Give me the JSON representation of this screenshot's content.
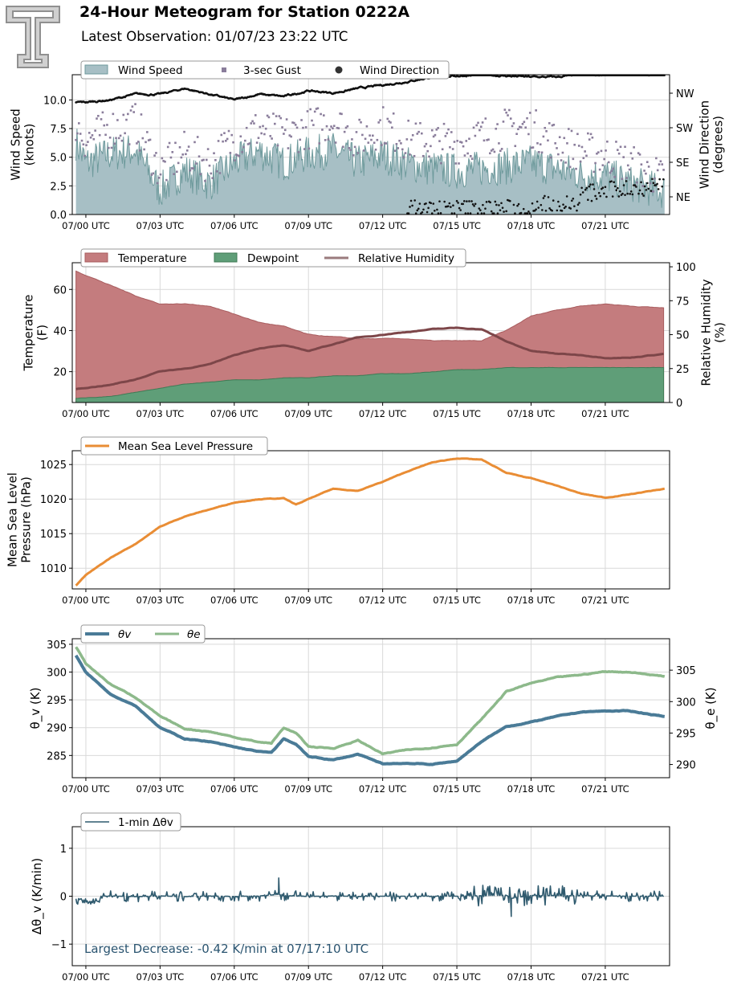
{
  "header": {
    "title": "24-Hour Meteogram for Station 0222A",
    "subtitle": "Latest Observation: 01/07/23 23:22 UTC"
  },
  "colors": {
    "wind_fill": "#a7bfc5",
    "wind_line": "#6e9a9c",
    "gust": "#8a7d9b",
    "direction": "#111111",
    "temperature": "#c47c7e",
    "dewpoint": "#5f9e78",
    "rh": "#7d4649",
    "mslp": "#e98d35",
    "theta_v": "#4a7b97",
    "theta_e": "#8db98b",
    "dtheta": "#2f5a6e",
    "annotation": "#2a5470"
  },
  "x_tick_labels": [
    "07/00 UTC",
    "07/03 UTC",
    "07/06 UTC",
    "07/09 UTC",
    "07/12 UTC",
    "07/15 UTC",
    "07/18 UTC",
    "07/21 UTC"
  ],
  "chart_data": [
    {
      "type": "area",
      "id": "wind",
      "ylabel": "Wind Speed\n(knots)",
      "y2label": "Wind Direction\n(degrees)",
      "ylim": [
        0,
        12.2
      ],
      "yticks": [
        "0.0",
        "2.5",
        "5.0",
        "7.5",
        "10.0"
      ],
      "ytick_values": [
        0,
        2.5,
        5,
        7.5,
        10
      ],
      "y2ticks": [
        "NE",
        "SE",
        "SW",
        "NW"
      ],
      "legend": [
        "Wind Speed",
        "3-sec Gust",
        "Wind Direction"
      ],
      "series": [
        {
          "name": "Wind Speed",
          "x": [
            -0.4,
            0,
            1,
            2,
            3,
            4,
            5,
            6,
            7,
            8,
            9,
            10,
            11,
            12,
            13,
            14,
            15,
            16,
            17,
            18,
            19,
            20,
            21,
            22,
            23.4
          ],
          "values": [
            6.3,
            4.5,
            5.3,
            5.6,
            2.1,
            3.8,
            2.7,
            4.5,
            5.5,
            4.5,
            5.3,
            5.6,
            4.5,
            5.2,
            4.4,
            4.0,
            3.8,
            4.0,
            4.2,
            4.5,
            4.0,
            3.5,
            3.4,
            2.7,
            2.0
          ]
        },
        {
          "name": "3-sec Gust",
          "x": [
            -0.4,
            0,
            1,
            2,
            3,
            4,
            5,
            6,
            7,
            8,
            9,
            10,
            11,
            12,
            13,
            14,
            15,
            16,
            17,
            18,
            19,
            20,
            21,
            22,
            23.4
          ],
          "values": [
            8.0,
            6.5,
            7.5,
            8.0,
            3.8,
            5.5,
            4.5,
            6.5,
            7.5,
            6.8,
            7.5,
            8.2,
            6.5,
            7.8,
            6.5,
            6.3,
            6.2,
            6.8,
            7.5,
            7.6,
            6.4,
            5.5,
            5.2,
            4.4,
            3.0
          ]
        },
        {
          "name": "Wind Direction",
          "x": [
            -0.4,
            0,
            1,
            2,
            3,
            4,
            5,
            6,
            7,
            8,
            9,
            10,
            11,
            12,
            13,
            14,
            15,
            16,
            17,
            18,
            19,
            20,
            21,
            22,
            23.4
          ],
          "values": [
            9.8,
            9.8,
            10.0,
            10.5,
            10.5,
            11.0,
            10.5,
            10.0,
            10.5,
            10.3,
            10.8,
            10.6,
            11.0,
            11.3,
            11.6,
            12.0,
            12.1,
            12.2,
            12.1,
            12.0,
            12.0,
            12.2,
            12.2,
            12.2,
            12.2
          ]
        }
      ]
    },
    {
      "type": "area",
      "id": "temp",
      "ylabel": "Temperature\n(F)",
      "y2label": "Relative Humidity\n(%)",
      "ylim": [
        5,
        73
      ],
      "yticks": [
        "20",
        "40",
        "60"
      ],
      "ytick_values": [
        20,
        40,
        60
      ],
      "y2lim": [
        0,
        103
      ],
      "y2ticks": [
        "0",
        "25",
        "50",
        "75",
        "100"
      ],
      "y2tick_values": [
        0,
        25,
        50,
        75,
        100
      ],
      "legend": [
        "Temperature",
        "Dewpoint",
        "Relative Humidity"
      ],
      "series": [
        {
          "name": "Temperature",
          "x": [
            -0.4,
            1,
            2,
            3,
            4,
            5,
            6,
            7,
            8,
            9,
            10,
            11,
            12,
            13,
            14,
            15,
            16,
            17,
            18,
            19,
            20,
            21,
            22,
            23.4
          ],
          "values": [
            69,
            62,
            57,
            53,
            53,
            52,
            48,
            44,
            42,
            38,
            37,
            36,
            36,
            36,
            35,
            35,
            35,
            40,
            47,
            50,
            52,
            53,
            52,
            51
          ]
        },
        {
          "name": "Dewpoint",
          "x": [
            -0.4,
            1,
            2,
            3,
            4,
            5,
            6,
            7,
            8,
            9,
            10,
            11,
            12,
            13,
            14,
            15,
            16,
            17,
            18,
            19,
            20,
            21,
            22,
            23.4
          ],
          "values": [
            7,
            8,
            10,
            12,
            14,
            15,
            16,
            16,
            17,
            17,
            18,
            18,
            19,
            19,
            20,
            21,
            21,
            22,
            22,
            22,
            22,
            22,
            22,
            22
          ]
        },
        {
          "name": "Relative Humidity",
          "x": [
            -0.4,
            1,
            2,
            3,
            4,
            5,
            6,
            7,
            8,
            9,
            10,
            11,
            12,
            13,
            14,
            15,
            16,
            17,
            18,
            19,
            20,
            21,
            22,
            23.4
          ],
          "values": [
            10,
            13,
            17,
            23,
            25,
            28,
            35,
            40,
            42,
            38,
            43,
            48,
            50,
            52,
            54,
            55,
            54,
            45,
            38,
            36,
            35,
            33,
            33,
            36
          ]
        }
      ]
    },
    {
      "type": "line",
      "id": "mslp",
      "ylabel": "Mean Sea Level\nPressure (hPa)",
      "ylim": [
        1007,
        1027
      ],
      "yticks": [
        "1010",
        "1015",
        "1020",
        "1025"
      ],
      "ytick_values": [
        1010,
        1015,
        1020,
        1025
      ],
      "legend": [
        "Mean Sea Level Pressure"
      ],
      "series": [
        {
          "name": "Mean Sea Level Pressure",
          "x": [
            -0.4,
            0,
            1,
            2,
            3,
            4,
            5,
            6,
            7,
            8,
            8.5,
            9,
            10,
            11,
            12,
            13,
            14,
            15,
            16,
            17,
            18,
            19,
            20,
            21,
            22,
            23.4
          ],
          "values": [
            1007.5,
            1009,
            1011.5,
            1013.5,
            1016,
            1017.5,
            1018.5,
            1019.5,
            1020,
            1020.1,
            1019.2,
            1020,
            1021.5,
            1021.2,
            1022.5,
            1024,
            1025.3,
            1025.9,
            1025.7,
            1023.8,
            1023,
            1022,
            1020.8,
            1020.2,
            1020.7,
            1021.5
          ]
        }
      ]
    },
    {
      "type": "line",
      "id": "theta",
      "ylabel": "θ_v (K)",
      "y2label": "θ_e (K)",
      "ylim": [
        281,
        306
      ],
      "yticks": [
        "285",
        "290",
        "295",
        "300",
        "305"
      ],
      "ytick_values": [
        285,
        290,
        295,
        300,
        305
      ],
      "y2lim": [
        287.9,
        310
      ],
      "y2ticks": [
        "290",
        "295",
        "300",
        "305"
      ],
      "y2tick_values": [
        290,
        295,
        300,
        305
      ],
      "legend": [
        "θv",
        "θe"
      ],
      "series": [
        {
          "name": "θv",
          "x": [
            -0.4,
            0,
            1,
            2,
            3,
            4,
            5,
            6,
            7,
            7.5,
            8,
            8.5,
            9,
            10,
            11,
            12,
            13,
            14,
            15,
            16,
            17,
            18,
            19,
            20,
            21,
            22,
            23.4
          ],
          "values": [
            303,
            300,
            296,
            294,
            290,
            288,
            287.5,
            286.5,
            285.7,
            285.5,
            288,
            287,
            284.8,
            284.2,
            285.2,
            283.5,
            283.6,
            283.4,
            284,
            287.5,
            290.2,
            291,
            292,
            292.8,
            293,
            293,
            292
          ]
        },
        {
          "name": "θe",
          "x": [
            -0.4,
            0,
            1,
            2,
            3,
            4,
            5,
            6,
            7,
            7.5,
            8,
            8.5,
            9,
            10,
            11,
            12,
            13,
            14,
            15,
            16,
            17,
            18,
            19,
            20,
            21,
            22,
            23.4
          ],
          "values": [
            304.5,
            301.5,
            297.8,
            295.5,
            292,
            289.8,
            289.3,
            288.3,
            287.4,
            287.2,
            290,
            289,
            286.6,
            286.3,
            287.7,
            285.3,
            286,
            286.4,
            287,
            291.5,
            296.5,
            298,
            299,
            299.5,
            300.1,
            300,
            299.2
          ]
        }
      ]
    },
    {
      "type": "line",
      "id": "dtheta",
      "ylabel": "Δθ_v (K/min)",
      "ylim": [
        -1.45,
        1.45
      ],
      "yticks": [
        "−1",
        "0",
        "1"
      ],
      "ytick_values": [
        -1,
        0,
        1
      ],
      "legend": [
        "1-min Δθv"
      ],
      "annotation": "Largest Decrease: -0.42 K/min at 07/17:10 UTC",
      "series": [
        {
          "name": "1-min Δθv",
          "x": [
            -0.4,
            0,
            1,
            2,
            3,
            4,
            5,
            6,
            7,
            7.8,
            8,
            9,
            10,
            11,
            12,
            13,
            14,
            15,
            16,
            17,
            17.2,
            18,
            19,
            20,
            21,
            22,
            23.4
          ],
          "values": [
            -0.05,
            -0.1,
            0.05,
            -0.1,
            0.05,
            -0.1,
            0.05,
            -0.05,
            0.05,
            0.35,
            0.1,
            -0.05,
            0.05,
            -0.05,
            0.0,
            0.0,
            0.0,
            0.0,
            0.1,
            0.2,
            -0.42,
            0.15,
            0.1,
            0.1,
            0.05,
            0.0,
            0.0
          ]
        }
      ]
    }
  ]
}
